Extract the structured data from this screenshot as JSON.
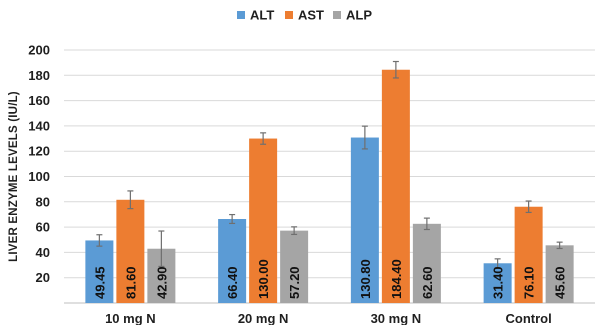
{
  "chart_data": {
    "type": "bar",
    "ylabel": "LIVER ENZYME LEVELS (IU/L)",
    "ylim": [
      0,
      200
    ],
    "yticks": [
      20,
      40,
      60,
      80,
      100,
      120,
      140,
      160,
      180,
      200
    ],
    "grid": true,
    "legend_position": "top",
    "categories": [
      "10 mg N",
      "20 mg N",
      "30 mg N",
      "Control"
    ],
    "series": [
      {
        "name": "ALT",
        "color": "#5b9bd5",
        "values": [
          49.45,
          66.4,
          130.8,
          31.4
        ],
        "labels": [
          "49.45",
          "66.40",
          "130.80",
          "31.40"
        ],
        "errors": [
          4.5,
          3.5,
          9.0,
          3.5
        ]
      },
      {
        "name": "AST",
        "color": "#ed7d31",
        "values": [
          81.6,
          130.0,
          184.4,
          76.1
        ],
        "labels": [
          "81.60",
          "130.00",
          "184.40",
          "76.10"
        ],
        "errors": [
          7.0,
          4.5,
          6.5,
          4.5
        ]
      },
      {
        "name": "ALP",
        "color": "#a5a5a5",
        "values": [
          42.9,
          57.2,
          62.6,
          45.6
        ],
        "labels": [
          "42.90",
          "57.20",
          "62.60",
          "45.60"
        ],
        "errors": [
          14.0,
          3.0,
          4.5,
          2.5
        ]
      }
    ]
  }
}
